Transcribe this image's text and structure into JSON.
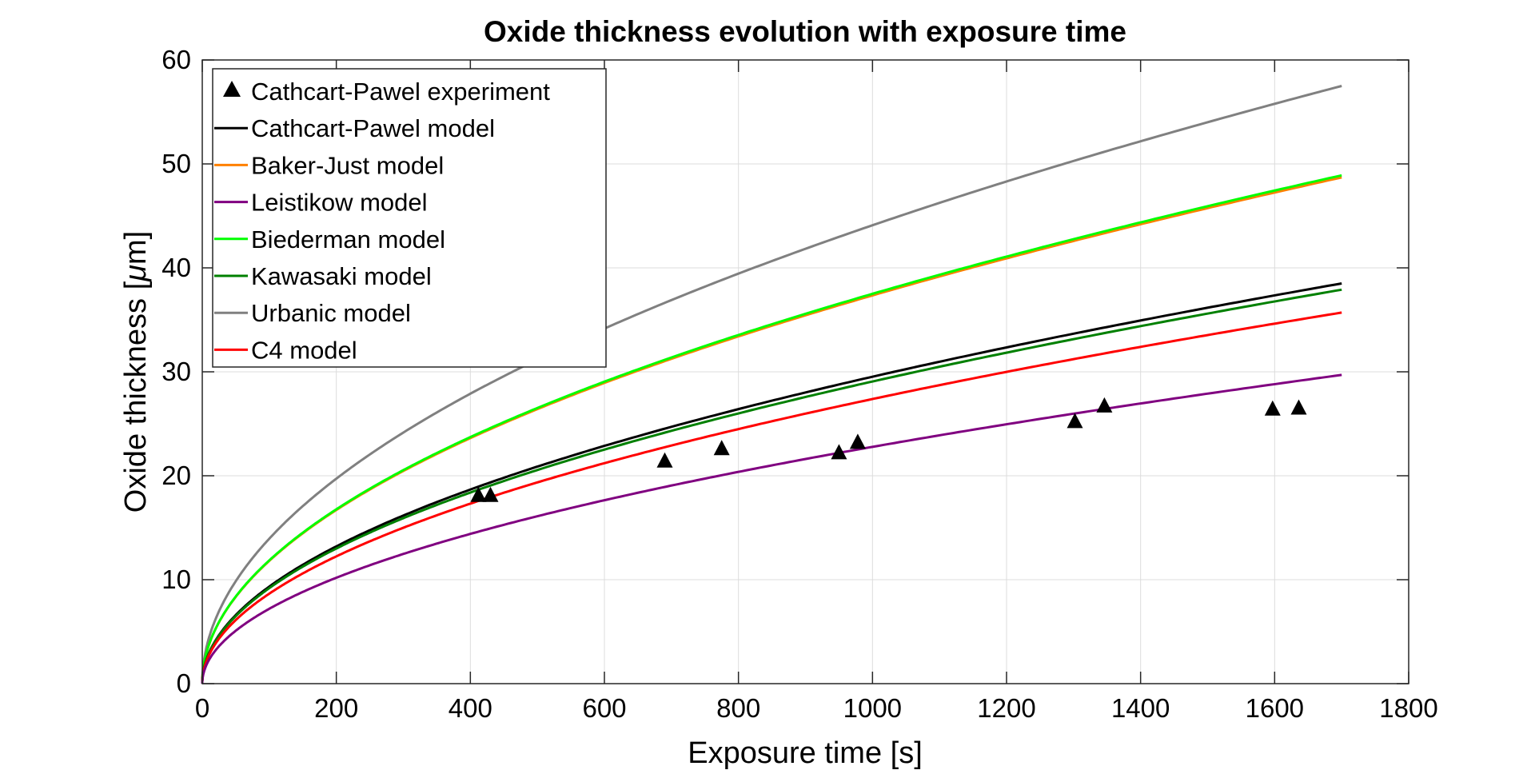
{
  "chart_data": {
    "type": "line",
    "title": "Oxide thickness evolution with exposure time",
    "xlabel": "Exposure time [s]",
    "ylabel_prefix": "Oxide thickness [",
    "ylabel_mu": "μ",
    "ylabel_suffix": "m]",
    "xlim": [
      0,
      1800
    ],
    "ylim": [
      0,
      60
    ],
    "xticks": [
      0,
      200,
      400,
      600,
      800,
      1000,
      1200,
      1400,
      1600,
      1800
    ],
    "yticks": [
      0,
      10,
      20,
      30,
      40,
      50,
      60
    ],
    "grid": true,
    "legend_position": "top-left",
    "experiment": {
      "name": "Cathcart-Pawel experiment",
      "marker": "triangle",
      "color": "#000000",
      "points": [
        {
          "x": 412,
          "y": 18.1
        },
        {
          "x": 430,
          "y": 18.1
        },
        {
          "x": 690,
          "y": 21.4
        },
        {
          "x": 775,
          "y": 22.6
        },
        {
          "x": 950,
          "y": 22.2
        },
        {
          "x": 978,
          "y": 23.2
        },
        {
          "x": 1302,
          "y": 25.2
        },
        {
          "x": 1346,
          "y": 26.7
        },
        {
          "x": 1597,
          "y": 26.4
        },
        {
          "x": 1636,
          "y": 26.5
        }
      ]
    },
    "series": [
      {
        "name": "Cathcart-Pawel model",
        "color": "#000000",
        "x_end": 1700,
        "y_end": 38.5
      },
      {
        "name": "Baker-Just model",
        "color": "#ff8000",
        "x_end": 1700,
        "y_end": 48.7
      },
      {
        "name": "Leistikow model",
        "color": "#800080",
        "x_end": 1700,
        "y_end": 29.7
      },
      {
        "name": "Biederman model",
        "color": "#00ff00",
        "x_end": 1700,
        "y_end": 48.9
      },
      {
        "name": "Kawasaki model",
        "color": "#008000",
        "x_end": 1700,
        "y_end": 37.9
      },
      {
        "name": "Urbanic model",
        "color": "#808080",
        "x_end": 1700,
        "y_end": 57.5
      },
      {
        "name": "C4 model",
        "color": "#ff0000",
        "x_end": 1700,
        "y_end": 35.7
      }
    ]
  }
}
